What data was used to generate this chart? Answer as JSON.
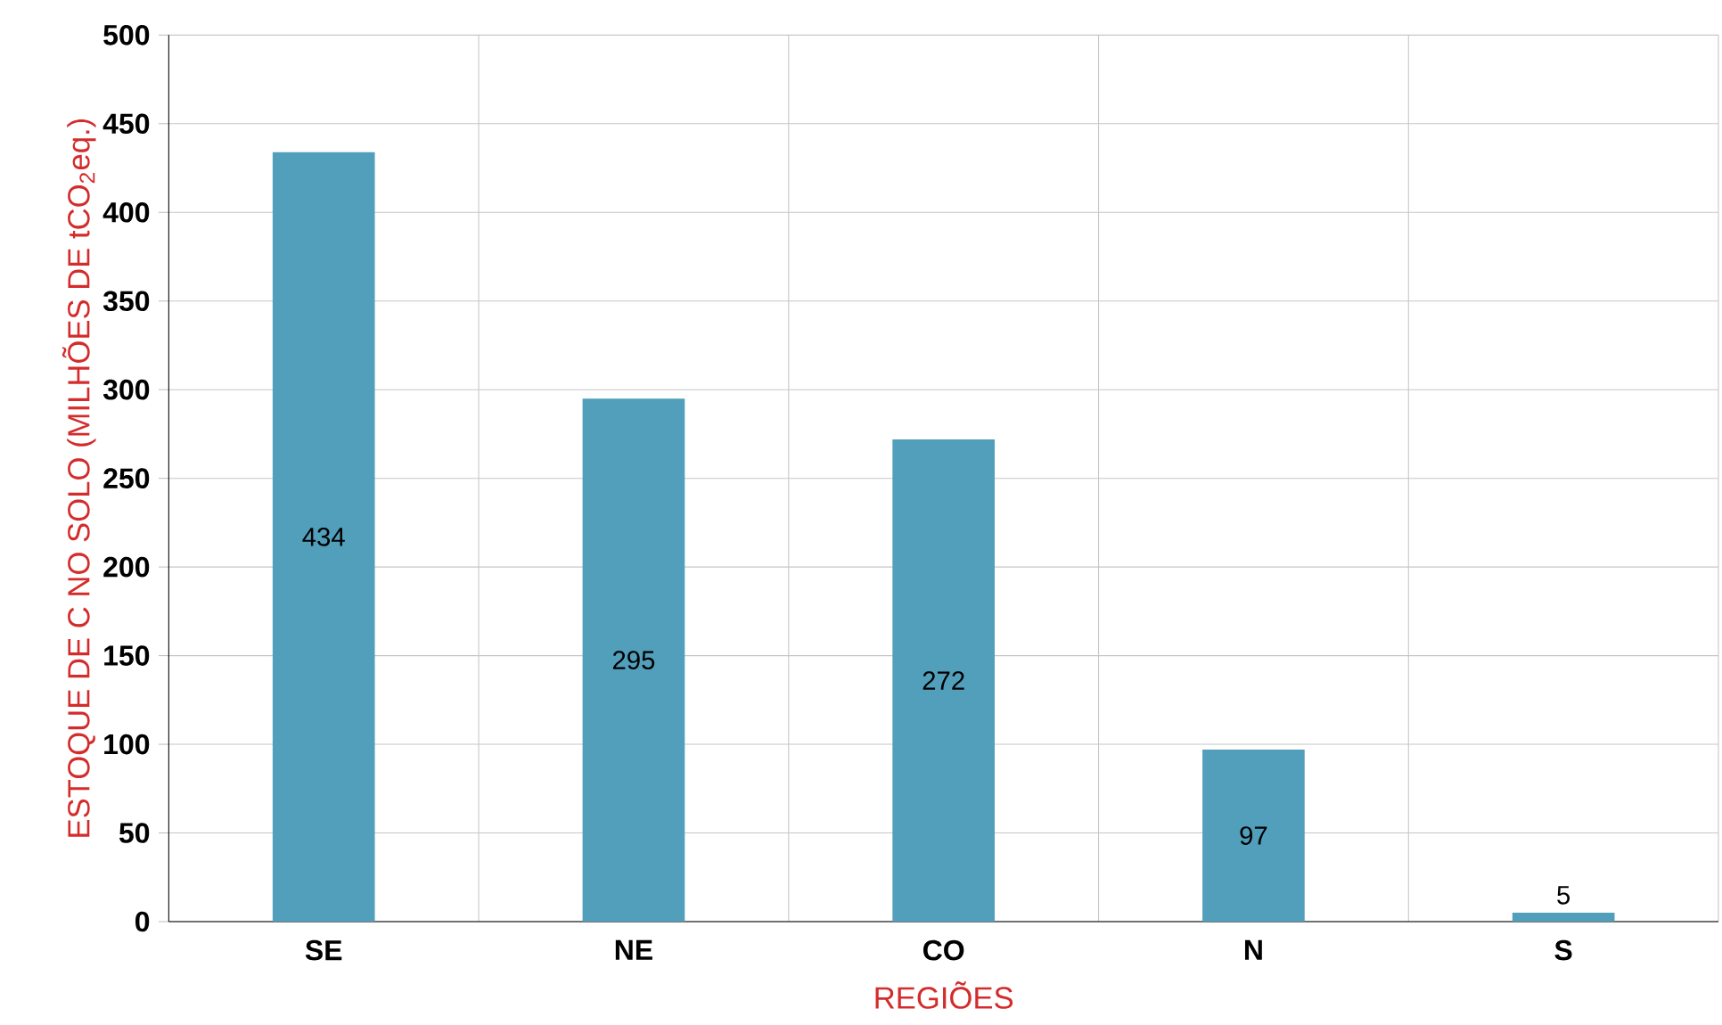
{
  "chart_data": {
    "type": "bar",
    "xlabel": "REGIÕES",
    "ylabel": "ESTOQUE DE C NO SOLO (MILHÕES DE tCO$_{2}$eq.)",
    "categories": [
      "SE",
      "NE",
      "CO",
      "N",
      "S"
    ],
    "values": [
      434,
      295,
      272,
      97,
      5
    ],
    "color": "#529fbb",
    "ylim": [
      0,
      500
    ],
    "yticks": [
      0,
      50,
      100,
      150,
      200,
      250,
      300,
      350,
      400,
      450,
      500
    ],
    "grid": true,
    "data_labels": true
  }
}
